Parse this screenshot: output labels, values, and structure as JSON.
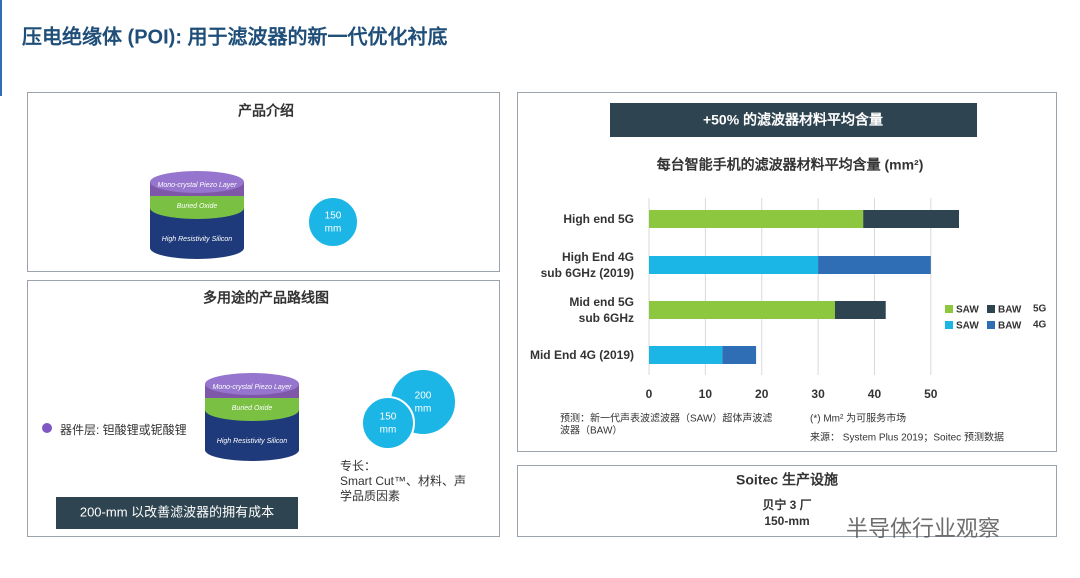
{
  "title": "压电绝缘体 (POI): 用于滤波器的新一代优化衬底",
  "product_intro": {
    "heading": "产品介绍",
    "layers": [
      "Mono-crystal Piezo Layer",
      "Buried Oxide",
      "High Resistivity Silicon"
    ],
    "wafer": {
      "size": "150",
      "unit": "mm"
    }
  },
  "roadmap": {
    "heading": "多用途的产品路线图",
    "layers": [
      "Mono-crystal Piezo Layer",
      "Buried Oxide",
      "High Resistivity Silicon"
    ],
    "device_layer": "器件层: 钽酸锂或铌酸锂",
    "wafers": [
      {
        "size": "200",
        "unit": "mm"
      },
      {
        "size": "150",
        "unit": "mm"
      }
    ],
    "expertise": [
      "专长：",
      "Smart Cut™、材料、声",
      "学品质因素"
    ],
    "banner": "200-mm 以改善滤波器的拥有成本"
  },
  "chart_panel": {
    "banner": "+50% 的滤波器材料平均含量",
    "forecast": [
      "预测：新一代声表波滤波器（SAW）超体声波滤",
      "波器（BAW）"
    ],
    "unit_note": "(*) Mm² 为可服务市场",
    "source": "来源： System Plus 2019；Soitec 预测数据"
  },
  "chart_data": {
    "type": "stacked-barh",
    "title": "每台智能手机的滤波器材料平均含量 (mm²)",
    "categories": [
      "High end 5G",
      "High End 4G\nsub 6GHz (2019)",
      "Mid end 5G\nsub 6GHz",
      "Mid End 4G (2019)"
    ],
    "series": [
      {
        "name": "SAW",
        "color": "#8dc63f",
        "values": [
          38,
          null,
          33,
          null
        ]
      },
      {
        "name": "BAW",
        "color": "#2e4450",
        "values": [
          17,
          null,
          9,
          null
        ]
      },
      {
        "name": "SAW",
        "color": "#1bb5e6",
        "values": [
          null,
          30,
          null,
          13
        ]
      },
      {
        "name": "BAW",
        "color": "#2f6eb5",
        "values": [
          null,
          20,
          null,
          6
        ]
      }
    ],
    "legend_groups": [
      "5G",
      "4G"
    ],
    "xlim": [
      0,
      55
    ],
    "xticks": [
      0,
      10,
      20,
      30,
      40,
      50
    ],
    "grid": true
  },
  "facility": {
    "heading": "Soitec 生产设施",
    "site": "贝宁 3 厂",
    "wafer": "150-mm"
  },
  "watermark": "半导体行业观察"
}
